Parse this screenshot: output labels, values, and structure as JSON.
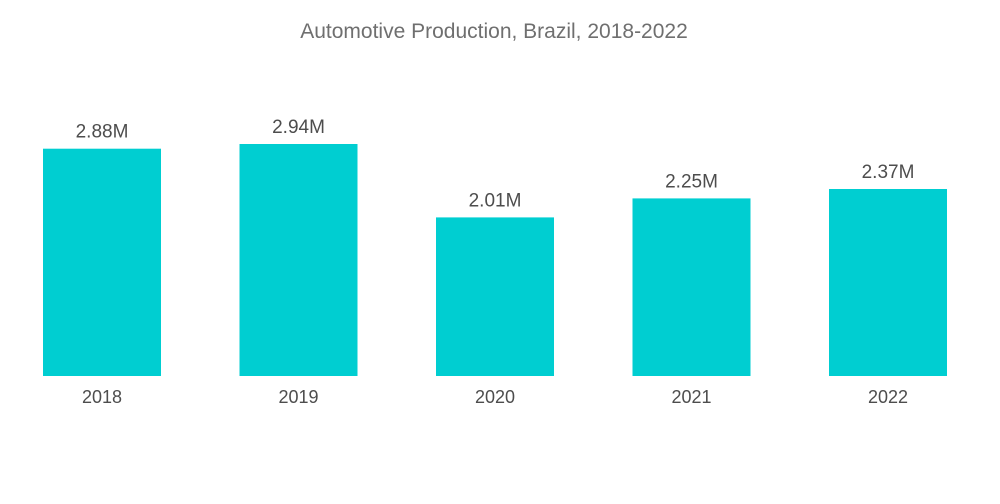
{
  "chart_data": {
    "type": "bar",
    "title": "Automotive Production, Brazil, 2018-2022",
    "categories": [
      "2018",
      "2019",
      "2020",
      "2021",
      "2022"
    ],
    "values": [
      2.88,
      2.94,
      2.01,
      2.25,
      2.37
    ],
    "data_labels": [
      "2.88M",
      "2.94M",
      "2.01M",
      "2.25M",
      "2.37M"
    ],
    "xlabel": "",
    "ylabel": "",
    "ylim": [
      0,
      2.94
    ],
    "grid": false,
    "legend": "none",
    "bar_color": "#00ced1"
  }
}
